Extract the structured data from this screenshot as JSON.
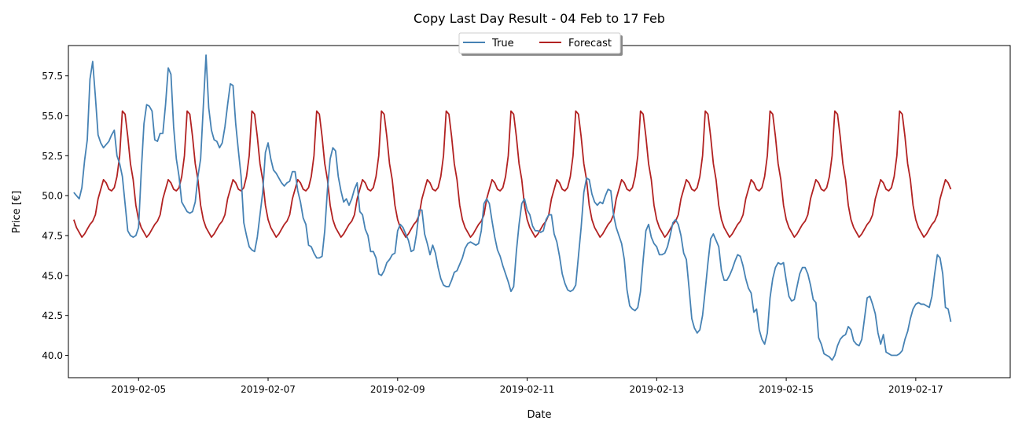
{
  "chart_data": {
    "type": "line",
    "title": "Copy Last Day Result - 04 Feb to 17 Feb",
    "xlabel": "Date",
    "ylabel": "Price [€]",
    "x_start": "2019-02-04",
    "x_range": [
      "2019-02-03T22:00",
      "2019-02-18T11:00"
    ],
    "xticks": [
      "2019-02-05",
      "2019-02-07",
      "2019-02-09",
      "2019-02-11",
      "2019-02-13",
      "2019-02-15",
      "2019-02-17"
    ],
    "ylim": [
      38.6,
      59.4
    ],
    "yticks": [
      "40.0",
      "42.5",
      "45.0",
      "47.5",
      "50.0",
      "52.5",
      "55.0",
      "57.5"
    ],
    "grid": false,
    "legend_position": "top-center",
    "series": [
      {
        "name": "True",
        "color": "#4682b4",
        "values": [
          50.2,
          50.0,
          49.8,
          50.5,
          52.2,
          53.5,
          57.3,
          58.4,
          56.2,
          53.8,
          53.3,
          53.0,
          53.2,
          53.4,
          53.8,
          54.1,
          52.5,
          52.0,
          51.2,
          49.5,
          47.8,
          47.5,
          47.4,
          47.5,
          48.0,
          51.5,
          54.5,
          55.7,
          55.6,
          55.3,
          53.5,
          53.4,
          53.9,
          53.9,
          55.7,
          58.0,
          57.6,
          54.3,
          52.3,
          51.2,
          49.6,
          49.3,
          49.0,
          48.9,
          49.0,
          49.6,
          51.2,
          52.3,
          55.6,
          58.8,
          55.5,
          54.1,
          53.5,
          53.4,
          53.0,
          53.3,
          54.3,
          55.7,
          57.0,
          56.9,
          54.5,
          52.8,
          51.2,
          48.3,
          47.5,
          46.8,
          46.6,
          46.5,
          47.4,
          48.8,
          50.2,
          52.7,
          53.3,
          52.3,
          51.6,
          51.4,
          51.1,
          50.8,
          50.6,
          50.8,
          50.9,
          51.5,
          51.5,
          50.3,
          49.6,
          48.6,
          48.2,
          46.9,
          46.8,
          46.4,
          46.1,
          46.1,
          46.2,
          47.8,
          50.4,
          52.3,
          53.0,
          52.8,
          51.2,
          50.3,
          49.6,
          49.8,
          49.4,
          49.8,
          50.4,
          50.8,
          49.0,
          48.8,
          47.9,
          47.5,
          46.5,
          46.5,
          46.1,
          45.1,
          45.0,
          45.3,
          45.8,
          46.0,
          46.3,
          46.4,
          47.8,
          48.2,
          48.0,
          47.6,
          47.2,
          46.5,
          46.6,
          47.6,
          49.1,
          49.1,
          47.6,
          47.0,
          46.3,
          46.9,
          46.4,
          45.5,
          44.8,
          44.4,
          44.3,
          44.3,
          44.7,
          45.2,
          45.3,
          45.7,
          46.1,
          46.7,
          47.0,
          47.1,
          47.0,
          46.9,
          47.0,
          47.8,
          49.5,
          49.8,
          49.5,
          48.4,
          47.4,
          46.6,
          46.2,
          45.6,
          45.1,
          44.6,
          44.0,
          44.3,
          46.5,
          48.2,
          49.5,
          49.8,
          49.1,
          48.8,
          48.1,
          47.8,
          47.8,
          47.7,
          47.8,
          48.5,
          48.8,
          48.8,
          47.6,
          47.1,
          46.2,
          45.1,
          44.5,
          44.1,
          44.0,
          44.1,
          44.4,
          46.2,
          48.0,
          50.2,
          51.1,
          51.0,
          50.1,
          49.6,
          49.4,
          49.6,
          49.5,
          50.0,
          50.4,
          50.3,
          48.8,
          48.0,
          47.5,
          47.0,
          46.0,
          44.1,
          43.1,
          42.9,
          42.8,
          43.0,
          44.0,
          46.0,
          47.8,
          48.2,
          47.4,
          47.0,
          46.8,
          46.3,
          46.3,
          46.4,
          46.8,
          47.5,
          48.3,
          48.5,
          48.2,
          47.5,
          46.4,
          46.0,
          44.2,
          42.3,
          41.7,
          41.4,
          41.6,
          42.5,
          44.1,
          45.8,
          47.3,
          47.6,
          47.2,
          46.8,
          45.3,
          44.7,
          44.7,
          45.0,
          45.4,
          45.9,
          46.3,
          46.2,
          45.6,
          44.8,
          44.2,
          43.9,
          42.7,
          42.9,
          41.6,
          41.0,
          40.7,
          41.4,
          43.6,
          44.8,
          45.5,
          45.8,
          45.7,
          45.8,
          44.7,
          43.7,
          43.4,
          43.5,
          44.3,
          45.1,
          45.5,
          45.5,
          45.1,
          44.4,
          43.5,
          43.3,
          41.1,
          40.7,
          40.1,
          40.0,
          39.9,
          39.7,
          40.0,
          40.6,
          41.0,
          41.2,
          41.3,
          41.8,
          41.6,
          40.9,
          40.7,
          40.6,
          41.0,
          42.3,
          43.6,
          43.7,
          43.2,
          42.6,
          41.4,
          40.7,
          41.3,
          40.2,
          40.1,
          40.0,
          40.0,
          40.0,
          40.1,
          40.3,
          41.0,
          41.5,
          42.3,
          42.9,
          43.2,
          43.3,
          43.2,
          43.2,
          43.1,
          43.0,
          43.7,
          45.1,
          46.3,
          46.1,
          45.1,
          43.0,
          42.9,
          42.1
        ]
      },
      {
        "name": "Forecast",
        "color": "#b22222",
        "values": [
          48.5,
          48.0,
          47.7,
          47.4,
          47.6,
          47.9,
          48.2,
          48.4,
          48.8,
          49.8,
          50.4,
          51.0,
          50.8,
          50.4,
          50.3,
          50.5,
          51.2,
          52.5,
          55.3,
          55.1,
          53.7,
          52.0,
          51.0,
          49.4,
          48.3
        ]
      }
    ]
  }
}
